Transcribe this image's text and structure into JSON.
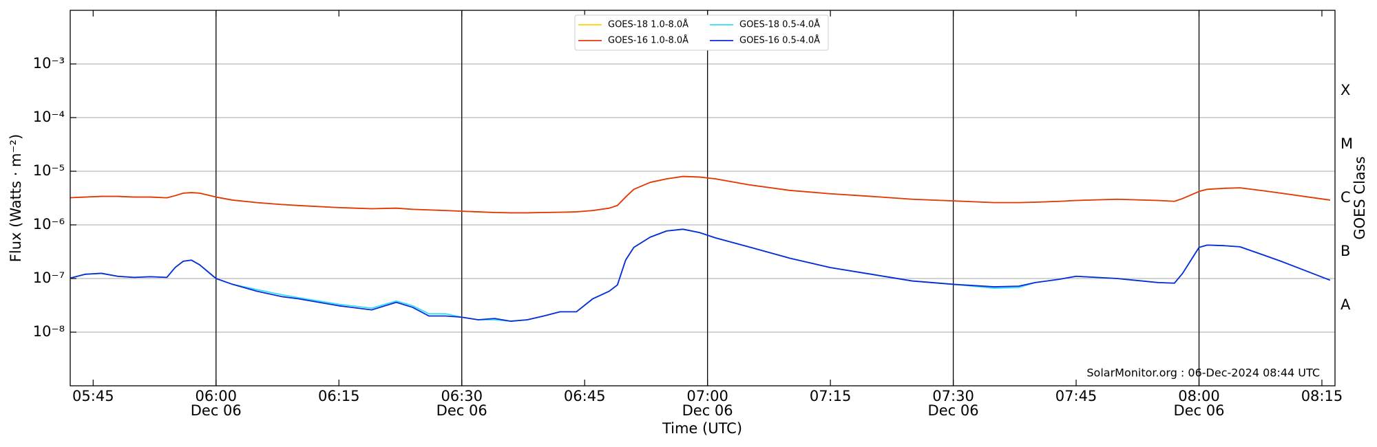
{
  "chart_data": {
    "type": "line",
    "xlabel": "Time (UTC)",
    "ylabel": "Flux (Watts · m⁻²)",
    "y2label": "GOES Class",
    "annotation": "SolarMonitor.org : 06-Dec-2024 08:44 UTC",
    "log_y": true,
    "grid": true,
    "legend": "upper center",
    "legend_columns": 2,
    "xlim": [
      "05:42:12",
      "08:16:36"
    ],
    "ylim": [
      1e-09,
      0.01
    ],
    "xticks": [
      {
        "value": "05:45",
        "label": "05:45"
      },
      {
        "value": "06:00",
        "label": "06:00",
        "date": "Dec 06"
      },
      {
        "value": "06:15",
        "label": "06:15"
      },
      {
        "value": "06:30",
        "label": "06:30",
        "date": "Dec 06"
      },
      {
        "value": "06:45",
        "label": "06:45"
      },
      {
        "value": "07:00",
        "label": "07:00",
        "date": "Dec 06"
      },
      {
        "value": "07:15",
        "label": "07:15"
      },
      {
        "value": "07:30",
        "label": "07:30",
        "date": "Dec 06"
      },
      {
        "value": "07:45",
        "label": "07:45"
      },
      {
        "value": "08:00",
        "label": "08:00",
        "date": "Dec 06"
      },
      {
        "value": "08:15",
        "label": "08:15"
      }
    ],
    "yticks": [
      {
        "value": 1e-08,
        "label": "10⁻⁸"
      },
      {
        "value": 1e-07,
        "label": "10⁻⁷"
      },
      {
        "value": 1e-06,
        "label": "10⁻⁶"
      },
      {
        "value": 1e-05,
        "label": "10⁻⁵"
      },
      {
        "value": 0.0001,
        "label": "10⁻⁴"
      },
      {
        "value": 0.001,
        "label": "10⁻³"
      }
    ],
    "y2_classes": [
      {
        "label": "A",
        "range": [
          1e-08,
          1e-07
        ]
      },
      {
        "label": "B",
        "range": [
          1e-07,
          1e-06
        ]
      },
      {
        "label": "C",
        "range": [
          1e-06,
          1e-05
        ]
      },
      {
        "label": "M",
        "range": [
          1e-05,
          0.0001
        ]
      },
      {
        "label": "X",
        "range": [
          0.0001,
          0.001
        ]
      }
    ],
    "x": [
      "05:42",
      "05:44",
      "05:46",
      "05:48",
      "05:50",
      "05:52",
      "05:54",
      "05:55",
      "05:56",
      "05:57",
      "05:58",
      "06:00",
      "06:02",
      "06:05",
      "06:08",
      "06:10",
      "06:15",
      "06:19",
      "06:22",
      "06:24",
      "06:26",
      "06:28",
      "06:30",
      "06:32",
      "06:34",
      "06:36",
      "06:38",
      "06:40",
      "06:42",
      "06:44",
      "06:46",
      "06:48",
      "06:49",
      "06:50",
      "06:51",
      "06:53",
      "06:55",
      "06:57",
      "06:59",
      "07:01",
      "07:05",
      "07:10",
      "07:15",
      "07:20",
      "07:25",
      "07:30",
      "07:35",
      "07:38",
      "07:40",
      "07:43",
      "07:45",
      "07:50",
      "07:55",
      "07:57",
      "07:58",
      "08:00",
      "08:01",
      "08:03",
      "08:05",
      "08:08",
      "08:10",
      "08:16"
    ],
    "series": [
      {
        "name": "GOES-18 1.0-8.0Å",
        "color": "#ffd400",
        "values": [
          3.2e-06,
          3.3e-06,
          3.4e-06,
          3.4e-06,
          3.3e-06,
          3.3e-06,
          3.2e-06,
          3.5e-06,
          3.9e-06,
          4e-06,
          3.9e-06,
          3.3e-06,
          2.9e-06,
          2.6e-06,
          2.4e-06,
          2.3e-06,
          2.1e-06,
          2e-06,
          2.05e-06,
          1.95e-06,
          1.9e-06,
          1.85e-06,
          1.8e-06,
          1.75e-06,
          1.7e-06,
          1.68e-06,
          1.68e-06,
          1.7e-06,
          1.72e-06,
          1.75e-06,
          1.85e-06,
          2.05e-06,
          2.3e-06,
          3.3e-06,
          4.6e-06,
          6.2e-06,
          7.2e-06,
          8e-06,
          7.8e-06,
          7.2e-06,
          5.6e-06,
          4.4e-06,
          3.8e-06,
          3.4e-06,
          3e-06,
          2.8e-06,
          2.6e-06,
          2.6e-06,
          2.65e-06,
          2.75e-06,
          2.85e-06,
          3e-06,
          2.85e-06,
          2.75e-06,
          3.1e-06,
          4.2e-06,
          4.6e-06,
          4.8e-06,
          4.9e-06,
          4.3e-06,
          3.9e-06,
          2.9e-06
        ]
      },
      {
        "name": "GOES-16 1.0-8.0Å",
        "color": "#e2360f",
        "values": [
          3.2e-06,
          3.3e-06,
          3.4e-06,
          3.4e-06,
          3.3e-06,
          3.3e-06,
          3.2e-06,
          3.5e-06,
          3.9e-06,
          4e-06,
          3.9e-06,
          3.3e-06,
          2.9e-06,
          2.6e-06,
          2.4e-06,
          2.3e-06,
          2.1e-06,
          2e-06,
          2.05e-06,
          1.95e-06,
          1.9e-06,
          1.85e-06,
          1.8e-06,
          1.75e-06,
          1.7e-06,
          1.68e-06,
          1.68e-06,
          1.7e-06,
          1.72e-06,
          1.75e-06,
          1.85e-06,
          2.05e-06,
          2.3e-06,
          3.3e-06,
          4.6e-06,
          6.2e-06,
          7.2e-06,
          8e-06,
          7.8e-06,
          7.2e-06,
          5.6e-06,
          4.4e-06,
          3.8e-06,
          3.4e-06,
          3e-06,
          2.8e-06,
          2.6e-06,
          2.6e-06,
          2.65e-06,
          2.75e-06,
          2.85e-06,
          3e-06,
          2.85e-06,
          2.75e-06,
          3.1e-06,
          4.2e-06,
          4.6e-06,
          4.8e-06,
          4.9e-06,
          4.3e-06,
          3.9e-06,
          2.9e-06
        ]
      },
      {
        "name": "GOES-18 0.5-4.0Å",
        "color": "#33dcff",
        "values": [
          1e-07,
          1.2e-07,
          1.25e-07,
          1.1e-07,
          1.05e-07,
          1.08e-07,
          1.05e-07,
          1.6e-07,
          2.1e-07,
          2.2e-07,
          1.8e-07,
          1e-07,
          7.8e-08,
          6.2e-08,
          5e-08,
          4.4e-08,
          3.3e-08,
          2.8e-08,
          3.8e-08,
          3.1e-08,
          2.2e-08,
          2.2e-08,
          1.9e-08,
          1.7e-08,
          1.7e-08,
          1.6e-08,
          1.7e-08,
          2e-08,
          2.4e-08,
          2.4e-08,
          4.2e-08,
          5.8e-08,
          7.6e-08,
          2.2e-07,
          3.8e-07,
          5.9e-07,
          7.7e-07,
          8.3e-07,
          7.2e-07,
          5.7e-07,
          3.9e-07,
          2.4e-07,
          1.6e-07,
          1.2e-07,
          9e-08,
          7.8e-08,
          6.6e-08,
          6.8e-08,
          8.4e-08,
          9.7e-08,
          1.1e-07,
          1e-07,
          8.4e-08,
          8.2e-08,
          1.25e-07,
          3.8e-07,
          4.2e-07,
          4.1e-07,
          3.9e-07,
          2.7e-07,
          2.1e-07,
          9.3e-08
        ]
      },
      {
        "name": "GOES-16 0.5-4.0Å",
        "color": "#0a2ad6",
        "values": [
          1e-07,
          1.2e-07,
          1.25e-07,
          1.1e-07,
          1.05e-07,
          1.08e-07,
          1.05e-07,
          1.6e-07,
          2.1e-07,
          2.2e-07,
          1.8e-07,
          1e-07,
          7.8e-08,
          5.8e-08,
          4.6e-08,
          4.2e-08,
          3.1e-08,
          2.6e-08,
          3.6e-08,
          2.9e-08,
          2e-08,
          2e-08,
          1.9e-08,
          1.7e-08,
          1.8e-08,
          1.6e-08,
          1.7e-08,
          2e-08,
          2.4e-08,
          2.4e-08,
          4.2e-08,
          5.8e-08,
          7.6e-08,
          2.2e-07,
          3.8e-07,
          5.9e-07,
          7.7e-07,
          8.3e-07,
          7.2e-07,
          5.7e-07,
          3.9e-07,
          2.4e-07,
          1.6e-07,
          1.2e-07,
          9e-08,
          7.8e-08,
          7e-08,
          7.2e-08,
          8.4e-08,
          9.7e-08,
          1.1e-07,
          1e-07,
          8.4e-08,
          8.2e-08,
          1.25e-07,
          3.8e-07,
          4.2e-07,
          4.1e-07,
          3.9e-07,
          2.7e-07,
          2.1e-07,
          9.3e-08
        ]
      }
    ]
  }
}
